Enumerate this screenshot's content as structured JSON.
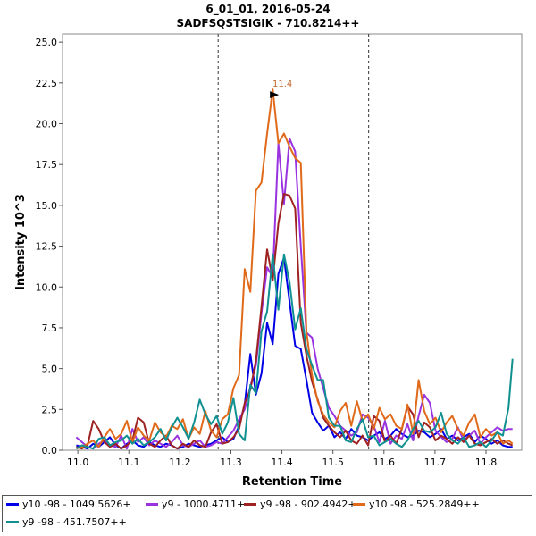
{
  "chart_data": {
    "type": "line",
    "title": "6_01_01, 2016-05-24",
    "subtitle": "SADFSQSTSIGIK - 710.8214++",
    "xlabel": "Retention Time",
    "ylabel": "Intensity 10^3",
    "xlim": [
      10.97,
      11.87
    ],
    "ylim": [
      0,
      25.5
    ],
    "x_ticks": [
      "11.0",
      "11.1",
      "11.2",
      "11.3",
      "11.4",
      "11.5",
      "11.6",
      "11.7",
      "11.8"
    ],
    "y_ticks": [
      "0.0",
      "2.5",
      "5.0",
      "7.5",
      "10.0",
      "12.5",
      "15.0",
      "17.5",
      "20.0",
      "22.5",
      "25.0"
    ],
    "integration_bounds": [
      11.275,
      11.57
    ],
    "peak_annotation": {
      "label": "11.4",
      "x": 11.401,
      "y": 22.1,
      "color": "#c0652a"
    },
    "x": [
      10.997,
      11.008,
      11.019,
      11.03,
      11.041,
      11.052,
      11.063,
      11.074,
      11.085,
      11.096,
      11.107,
      11.118,
      11.129,
      11.14,
      11.151,
      11.162,
      11.173,
      11.184,
      11.195,
      11.206,
      11.217,
      11.228,
      11.239,
      11.25,
      11.261,
      11.272,
      11.283,
      11.294,
      11.305,
      11.316,
      11.327,
      11.338,
      11.349,
      11.36,
      11.371,
      11.382,
      11.393,
      11.404,
      11.415,
      11.426,
      11.437,
      11.448,
      11.459,
      11.47,
      11.481,
      11.492,
      11.503,
      11.514,
      11.525,
      11.536,
      11.547,
      11.558,
      11.569,
      11.58,
      11.591,
      11.602,
      11.613,
      11.624,
      11.635,
      11.646,
      11.657,
      11.668,
      11.679,
      11.69,
      11.701,
      11.712,
      11.723,
      11.734,
      11.745,
      11.756,
      11.767,
      11.778,
      11.789,
      11.8,
      11.811,
      11.822,
      11.833,
      11.844,
      11.852
    ],
    "series": [
      {
        "name": "y10 -98 - 1049.5626+",
        "color": "#0000e6",
        "values": [
          0.3,
          0.2,
          0.1,
          0.4,
          0.2,
          0.5,
          0.8,
          0.3,
          0.1,
          0.4,
          0.6,
          0.3,
          0.2,
          0.5,
          0.3,
          0.2,
          0.4,
          0.3,
          0.1,
          0.2,
          0.4,
          0.3,
          0.2,
          0.3,
          0.4,
          0.6,
          0.8,
          0.5,
          0.7,
          1.5,
          2.8,
          5.9,
          3.4,
          4.7,
          7.8,
          6.5,
          10.8,
          11.8,
          9.1,
          6.4,
          6.2,
          4.3,
          2.3,
          1.7,
          1.2,
          1.5,
          0.8,
          1.1,
          0.7,
          1.3,
          0.9,
          0.8,
          0.6,
          0.9,
          1.1,
          0.7,
          0.9,
          1.3,
          1.0,
          0.8,
          0.9,
          1.2,
          1.1,
          0.8,
          1.0,
          1.3,
          0.7,
          0.9,
          0.6,
          0.8,
          1.0,
          0.5,
          0.9,
          0.7,
          0.4,
          0.6,
          0.3,
          0.2,
          0.2
        ]
      },
      {
        "name": "y9 - 1000.4711+",
        "color": "#9933e0",
        "values": [
          0.8,
          0.5,
          0.2,
          0.1,
          0.4,
          0.6,
          0.3,
          0.2,
          0.9,
          0.1,
          1.3,
          0.5,
          0.8,
          0.3,
          0.6,
          0.4,
          0.2,
          0.5,
          0.9,
          0.3,
          0.2,
          0.4,
          0.6,
          0.2,
          0.3,
          0.5,
          0.4,
          0.8,
          1.2,
          1.9,
          2.5,
          3.9,
          5.2,
          8.4,
          11.2,
          10.6,
          18.8,
          15.1,
          19.1,
          18.3,
          12.5,
          7.2,
          6.9,
          5.0,
          3.8,
          2.6,
          2.1,
          1.5,
          1.2,
          0.9,
          1.1,
          2.2,
          2.0,
          1.5,
          0.5,
          1.8,
          0.4,
          0.9,
          0.7,
          1.6,
          0.6,
          2.1,
          3.4,
          2.9,
          1.2,
          0.8,
          0.5,
          0.7,
          1.4,
          0.6,
          0.9,
          1.2,
          0.4,
          0.8,
          1.1,
          1.4,
          1.2,
          1.3,
          1.3
        ]
      },
      {
        "name": "y9 -98 - 902.4942+",
        "color": "#9e2222",
        "values": [
          0.2,
          0.1,
          0.3,
          1.8,
          1.3,
          0.5,
          0.2,
          0.4,
          0.1,
          0.3,
          0.6,
          2.0,
          1.7,
          0.4,
          0.2,
          0.6,
          0.9,
          0.3,
          0.1,
          0.4,
          0.2,
          0.6,
          0.3,
          0.2,
          1.1,
          1.6,
          0.4,
          0.5,
          0.8,
          1.3,
          2.9,
          3.7,
          5.5,
          8.8,
          12.3,
          10.4,
          13.9,
          15.7,
          15.6,
          14.8,
          7.8,
          5.8,
          4.2,
          3.1,
          2.0,
          1.5,
          1.1,
          0.8,
          1.2,
          0.6,
          0.4,
          0.9,
          0.3,
          2.1,
          1.8,
          0.5,
          0.9,
          0.4,
          1.3,
          2.7,
          2.2,
          0.8,
          1.7,
          1.4,
          0.6,
          0.9,
          0.7,
          0.4,
          0.8,
          0.5,
          0.9,
          0.4,
          0.3,
          0.5,
          0.7,
          0.4,
          0.6,
          0.4,
          0.3
        ]
      },
      {
        "name": "y10 -98 - 525.2849++",
        "color": "#e06a1a",
        "values": [
          0.1,
          0.2,
          0.4,
          0.6,
          0.2,
          0.8,
          1.3,
          0.7,
          1.0,
          1.8,
          0.5,
          1.4,
          0.9,
          0.6,
          1.7,
          1.1,
          0.8,
          1.5,
          1.3,
          1.9,
          0.7,
          1.4,
          1.0,
          2.4,
          1.2,
          0.8,
          1.9,
          2.2,
          3.8,
          4.6,
          11.1,
          9.7,
          15.9,
          16.4,
          19.4,
          22.1,
          18.8,
          19.4,
          18.6,
          17.9,
          17.6,
          7.3,
          4.6,
          3.0,
          2.2,
          1.7,
          1.4,
          2.4,
          2.9,
          1.5,
          3.0,
          1.8,
          2.2,
          1.3,
          2.6,
          1.9,
          2.2,
          1.5,
          1.3,
          2.8,
          1.0,
          4.3,
          2.4,
          1.6,
          2.0,
          1.1,
          1.7,
          2.1,
          1.3,
          0.9,
          1.7,
          2.2,
          0.8,
          1.3,
          0.9,
          1.1,
          0.4,
          0.6,
          0.4
        ]
      },
      {
        "name": "y9 -98 - 451.7507++",
        "color": "#109090",
        "values": [
          0.1,
          0.3,
          0.2,
          0.1,
          0.7,
          0.8,
          0.3,
          0.5,
          0.6,
          0.9,
          0.4,
          0.7,
          0.3,
          0.5,
          0.8,
          1.3,
          0.6,
          1.4,
          2.0,
          1.4,
          0.7,
          1.7,
          3.1,
          2.2,
          1.6,
          2.1,
          1.0,
          1.7,
          3.2,
          1.0,
          0.6,
          4.0,
          3.5,
          7.3,
          8.5,
          12.0,
          8.6,
          12.0,
          10.3,
          7.4,
          8.7,
          6.2,
          5.2,
          4.3,
          4.3,
          2.0,
          1.5,
          1.5,
          0.6,
          0.5,
          1.3,
          1.9,
          0.8,
          0.9,
          0.3,
          0.5,
          0.7,
          0.4,
          0.2,
          0.6,
          1.3,
          1.8,
          1.2,
          1.1,
          1.4,
          2.3,
          1.0,
          0.6,
          0.4,
          0.8,
          0.2,
          0.3,
          0.5,
          0.2,
          0.6,
          1.1,
          0.9,
          2.6,
          5.6
        ]
      }
    ]
  }
}
